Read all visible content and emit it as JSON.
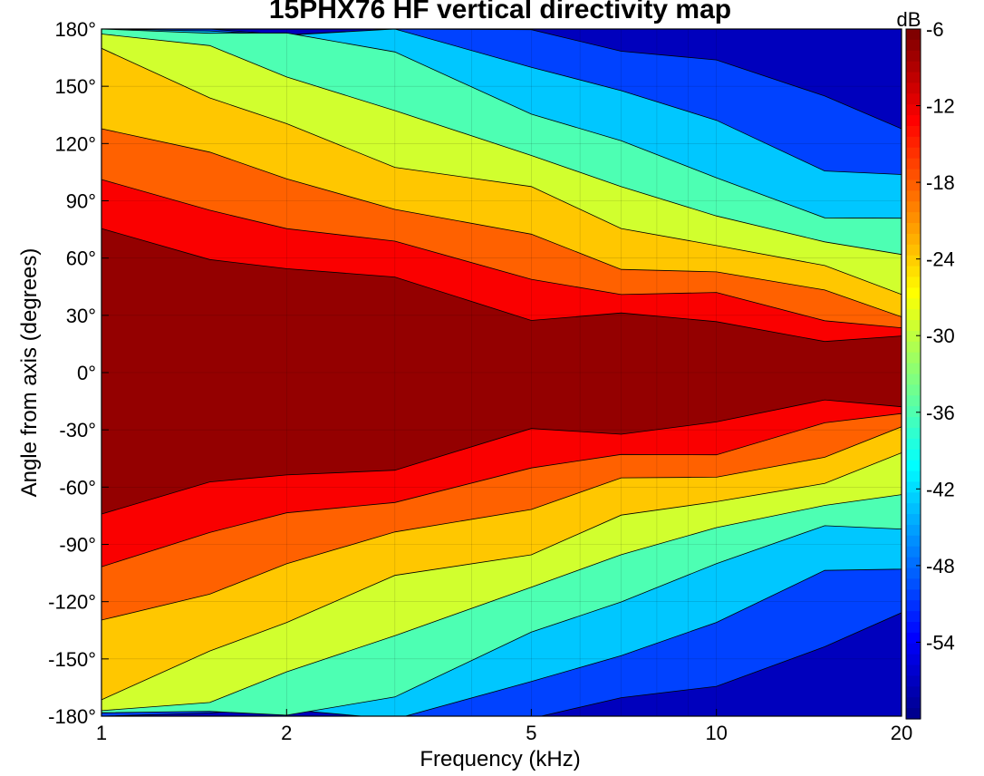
{
  "chart_data": {
    "type": "heatmap",
    "title": "15PHX76 HF vertical directivity map",
    "xlabel": "Frequency (kHz)",
    "ylabel": "Angle from axis (degrees)",
    "x_scale": "log",
    "xlim": [
      1,
      20
    ],
    "ylim": [
      -180,
      180
    ],
    "x_ticks": [
      1,
      2,
      5,
      10,
      20
    ],
    "x_tick_labels": [
      "1",
      "2",
      "5",
      "10",
      "20"
    ],
    "y_ticks": [
      180,
      150,
      120,
      90,
      60,
      30,
      0,
      -30,
      -60,
      -90,
      -120,
      -150,
      -180
    ],
    "y_tick_labels": [
      "180°",
      "150°",
      "120°",
      "90°",
      "60°",
      "30°",
      "0°",
      "-30°",
      "-60°",
      "-90°",
      "-120°",
      "-150°",
      "-180°"
    ],
    "colorbar": {
      "label": "dB",
      "range": [
        -60,
        -6
      ],
      "ticks": [
        -6,
        -12,
        -18,
        -24,
        -30,
        -36,
        -42,
        -48,
        -54
      ],
      "tick_labels": [
        "-6",
        "-12",
        "-18",
        "-24",
        "-30",
        "-36",
        "-42",
        "-48",
        "-54"
      ],
      "colormap": "jet",
      "levels": 9
    },
    "grid": true,
    "contour_boundaries_deg": {
      "frequencies_khz": [
        1,
        1.5,
        2,
        3,
        5,
        7,
        10,
        15,
        20
      ],
      "minus6": [
        70,
        62,
        56,
        45,
        33,
        28,
        26,
        20,
        15
      ],
      "minus12": [
        98,
        85,
        78,
        66,
        50,
        42,
        40,
        28,
        25
      ],
      "minus18": [
        130,
        113,
        102,
        88,
        68,
        58,
        52,
        40,
        35
      ],
      "minus24": [
        175,
        142,
        128,
        113,
        92,
        78,
        68,
        52,
        45
      ],
      "minus30": [
        180,
        172,
        152,
        140,
        113,
        96,
        84,
        68,
        60
      ],
      "minus36": [
        180,
        180,
        178,
        165,
        140,
        118,
        102,
        85,
        75
      ],
      "minus42": [
        180,
        180,
        180,
        180,
        165,
        146,
        130,
        110,
        100
      ],
      "minus48": [
        180,
        180,
        180,
        180,
        180,
        170,
        162,
        145,
        130
      ]
    }
  }
}
